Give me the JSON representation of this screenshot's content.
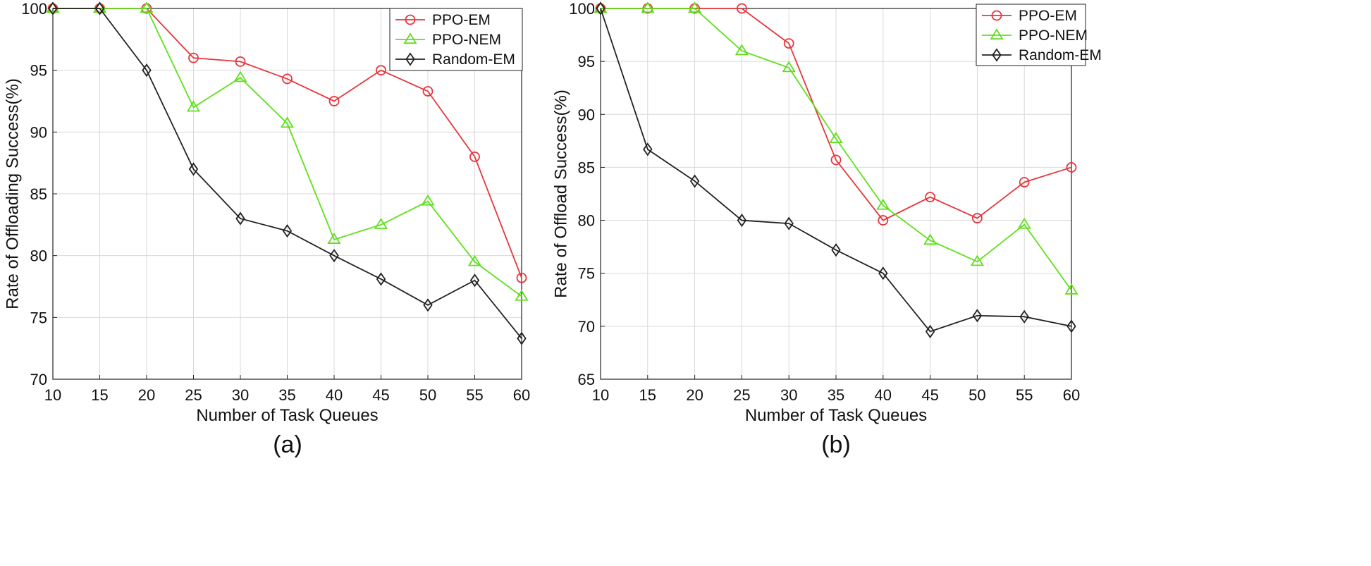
{
  "chart_data": [
    {
      "type": "line",
      "panel_label": "(a)",
      "title": "",
      "xlabel": "Number of Task Queues",
      "ylabel": "Rate of Offloading Success(%)",
      "x": [
        10,
        15,
        20,
        25,
        30,
        35,
        40,
        45,
        50,
        55,
        60
      ],
      "xlim": [
        10,
        60
      ],
      "ylim": [
        70,
        100
      ],
      "xticks": [
        10,
        15,
        20,
        25,
        30,
        35,
        40,
        45,
        50,
        55,
        60
      ],
      "yticks": [
        70,
        75,
        80,
        85,
        90,
        95,
        100
      ],
      "grid": true,
      "legend_position": "top-right",
      "series": [
        {
          "name": "PPO-EM",
          "color": "#e8353c",
          "marker": "circle",
          "values": [
            100,
            100,
            100,
            96,
            95.7,
            94.3,
            92.5,
            95,
            93.3,
            88,
            78.2
          ]
        },
        {
          "name": "PPO-NEM",
          "color": "#5fe01c",
          "marker": "triangle",
          "values": [
            100,
            100,
            100,
            92,
            94.4,
            90.7,
            81.3,
            82.5,
            84.4,
            79.5,
            76.7
          ]
        },
        {
          "name": "Random-EM",
          "color": "#222222",
          "marker": "diamond",
          "values": [
            100,
            100,
            95,
            87,
            83,
            82,
            80,
            78.1,
            76,
            78,
            73.3
          ]
        }
      ]
    },
    {
      "type": "line",
      "panel_label": "(b)",
      "title": "",
      "xlabel": "Number of Task Queues",
      "ylabel": "Rate of Offload Success(%)",
      "x": [
        10,
        15,
        20,
        25,
        30,
        35,
        40,
        45,
        50,
        55,
        60
      ],
      "xlim": [
        10,
        60
      ],
      "ylim": [
        65,
        100
      ],
      "xticks": [
        10,
        15,
        20,
        25,
        30,
        35,
        40,
        45,
        50,
        55,
        60
      ],
      "yticks": [
        65,
        70,
        75,
        80,
        85,
        90,
        95,
        100
      ],
      "grid": true,
      "legend_position": "top-right",
      "series": [
        {
          "name": "PPO-EM",
          "color": "#e8353c",
          "marker": "circle",
          "values": [
            100,
            100,
            100,
            100,
            96.7,
            85.7,
            80,
            82.2,
            80.2,
            83.6,
            85
          ]
        },
        {
          "name": "PPO-NEM",
          "color": "#5fe01c",
          "marker": "triangle",
          "values": [
            100,
            100,
            100,
            96,
            94.4,
            87.7,
            81.4,
            78.1,
            76.1,
            79.6,
            73.4
          ]
        },
        {
          "name": "Random-EM",
          "color": "#222222",
          "marker": "diamond",
          "values": [
            100,
            86.7,
            83.7,
            80,
            79.7,
            77.2,
            75,
            69.5,
            71,
            70.9,
            70
          ]
        }
      ]
    }
  ]
}
